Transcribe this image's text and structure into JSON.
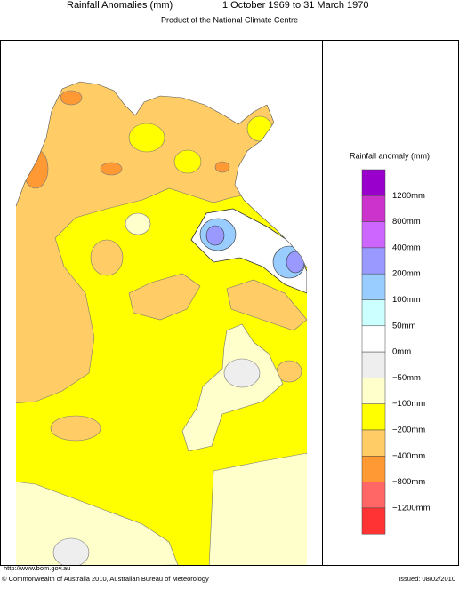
{
  "header": {
    "title": "Rainfall Anomalies (mm)",
    "period": "1 October 1969 to 31 March 1970",
    "subtitle": "Product of the National Climate Centre"
  },
  "legend": {
    "title": "Rainfall anomaly (mm)",
    "colors": [
      "#9900cc",
      "#cc33cc",
      "#cc66ff",
      "#9999ff",
      "#99ccff",
      "#ccffff",
      "#ffffff",
      "#eeeeee",
      "#ffffcc",
      "#ffff00",
      "#ffcc66",
      "#ff9933",
      "#ff6666",
      "#ff3333"
    ],
    "labels": [
      "1200mm",
      "800mm",
      "400mm",
      "200mm",
      "100mm",
      "50mm",
      "0mm",
      "−50mm",
      "−100mm",
      "−200mm",
      "−400mm",
      "−800mm",
      "−1200mm"
    ]
  },
  "footer": {
    "url": "http://www.bom.gov.au",
    "copyright": "© Commonwealth of Australia 2010, Australian Bureau of Meteorology",
    "issued": "Issued: 08/02/2010"
  }
}
